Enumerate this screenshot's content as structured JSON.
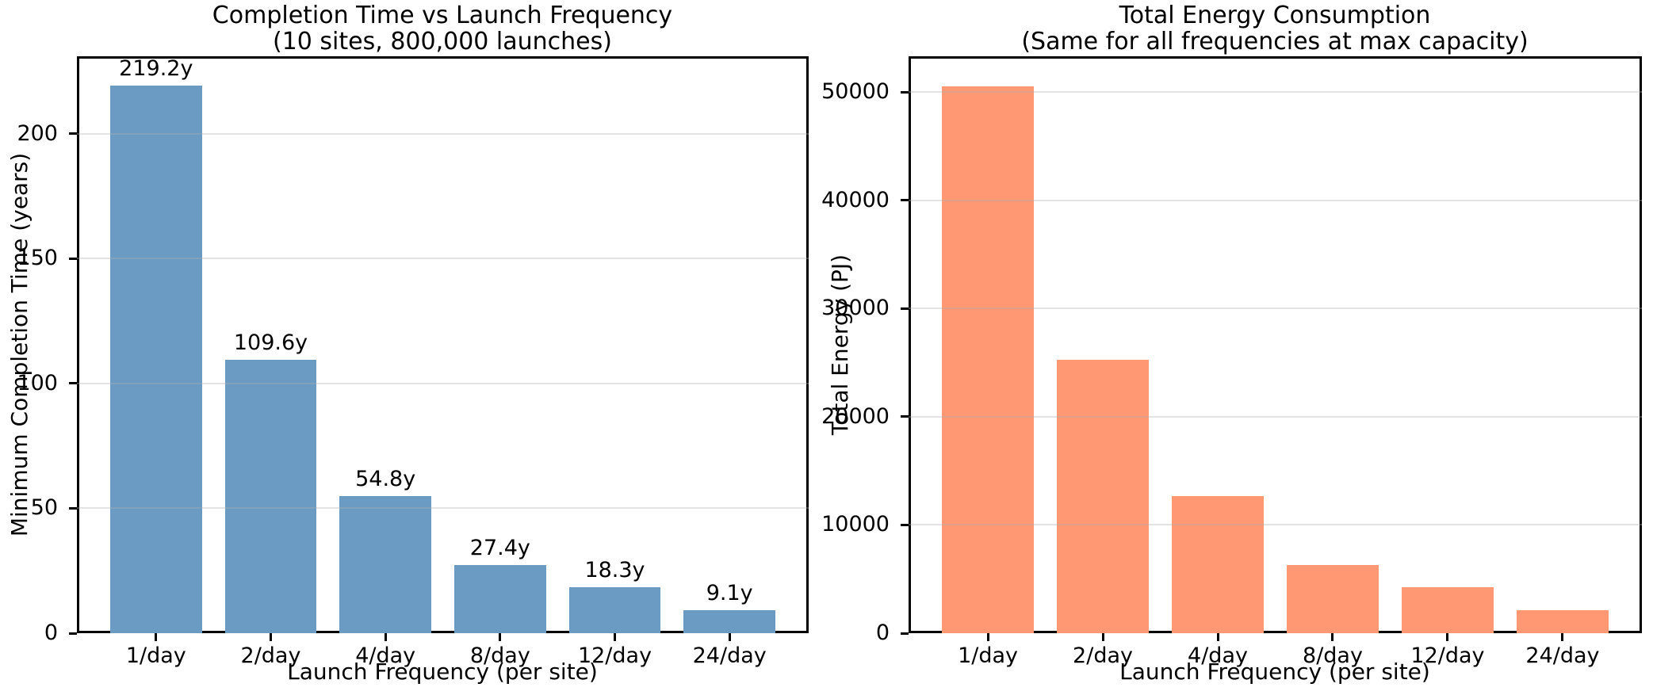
{
  "figure": {
    "background": "#ffffff",
    "spine_color": "#000000",
    "grid_color": "#b0b0b0"
  },
  "chart_data": [
    {
      "type": "bar",
      "title": "Completion Time vs Launch Frequency",
      "subtitle": "(10 sites, 800,000 launches)",
      "xlabel": "Launch Frequency (per site)",
      "ylabel": "Minimum Completion Time (years)",
      "categories": [
        "1/day",
        "2/day",
        "4/day",
        "8/day",
        "12/day",
        "24/day"
      ],
      "values": [
        219.2,
        109.6,
        54.8,
        27.4,
        18.3,
        9.1
      ],
      "bar_labels": [
        "219.2y",
        "109.6y",
        "54.8y",
        "27.4y",
        "18.3y",
        "9.1y"
      ],
      "yticks": [
        0,
        50,
        100,
        150,
        200
      ],
      "ylim": [
        0,
        231
      ],
      "bar_color": "#6B9BC3",
      "grid": true,
      "legend": null
    },
    {
      "type": "bar",
      "title": "Total Energy Consumption",
      "subtitle": "(Same for all frequencies at max capacity)",
      "xlabel": "Launch Frequency (per site)",
      "ylabel": "Total Energy (PJ)",
      "categories": [
        "1/day",
        "2/day",
        "4/day",
        "8/day",
        "12/day",
        "24/day"
      ],
      "values": [
        50545,
        25272,
        12636,
        6318,
        4212,
        2106
      ],
      "bar_labels": null,
      "yticks": [
        0,
        10000,
        20000,
        30000,
        40000,
        50000
      ],
      "ylim": [
        0,
        53300
      ],
      "bar_color": "#FF9873",
      "grid": true,
      "legend": null
    }
  ]
}
